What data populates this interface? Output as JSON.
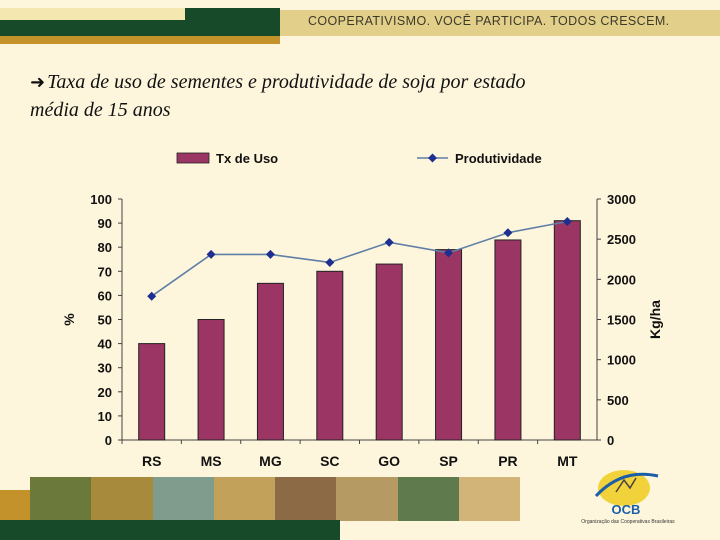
{
  "header": {
    "slogan": "COOPERATIVISMO. VOCÊ PARTICIPA. TODOS CRESCEM."
  },
  "title": {
    "line1": "Taxa de uso de sementes e produtividade de soja por estado",
    "line2": "média de 15 anos",
    "bullet_icon": "arrow-right-icon"
  },
  "logo": {
    "text": "OCB",
    "subtitle": "Organização das Cooperativas Brasileiras"
  },
  "colors": {
    "bar": "#9b3564",
    "line": "#5f7fa6",
    "marker": "#1f2f8f",
    "green": "#174a28"
  },
  "chart_data": {
    "type": "bar",
    "categories": [
      "RS",
      "MS",
      "MG",
      "SC",
      "GO",
      "SP",
      "PR",
      "MT"
    ],
    "series": [
      {
        "name": "Tx de Uso",
        "type": "bar",
        "axis": "left",
        "values": [
          40,
          50,
          65,
          70,
          73,
          79,
          83,
          91
        ]
      },
      {
        "name": "Produtividade",
        "type": "line",
        "axis": "right",
        "values": [
          1790,
          2310,
          2310,
          2210,
          2460,
          2330,
          2580,
          2720
        ]
      }
    ],
    "ylabel": "%",
    "y2label": "Kg/ha",
    "ylim": [
      0,
      100
    ],
    "y2lim": [
      0,
      3000
    ],
    "yticks": [
      0,
      10,
      20,
      30,
      40,
      50,
      60,
      70,
      80,
      90,
      100
    ],
    "y2ticks": [
      0,
      500,
      1000,
      1500,
      2000,
      2500,
      3000
    ],
    "legend": "top",
    "grid": false
  }
}
